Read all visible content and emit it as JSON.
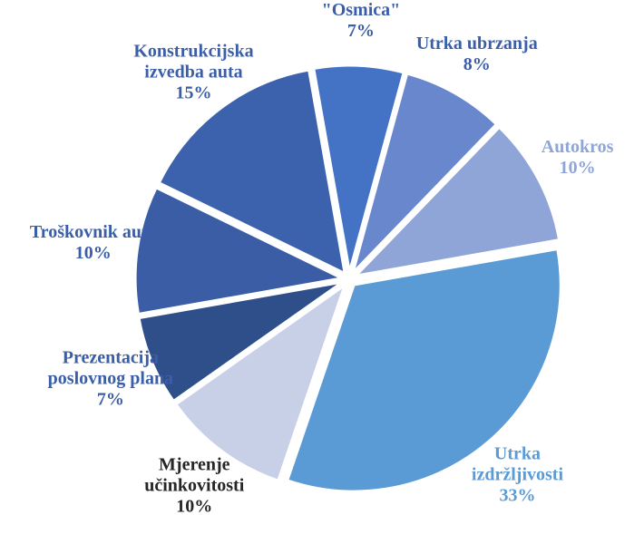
{
  "chart_data": {
    "type": "pie",
    "categories": [
      "\"Osmica\"",
      "Utrka ubrzanja",
      "Autokros",
      "Utrka izdržljivosti",
      "Mjerenje učinkovitosti",
      "Prezentacija poslovnog plana",
      "Troškovnik auta",
      "Konstrukcijska izvedba auta"
    ],
    "values": [
      7,
      8,
      10,
      33,
      10,
      7,
      10,
      15
    ],
    "value_labels": [
      "7%",
      "8%",
      "10%",
      "33%",
      "10%",
      "7%",
      "10%",
      "15%"
    ],
    "colors": [
      "#4472c4",
      "#6887cd",
      "#8fa5d7",
      "#5b9bd5",
      "#c8d0e8",
      "#2f4f8a",
      "#3a5da6",
      "#3d62ad"
    ],
    "label_colors": [
      "#3b5ea8",
      "#3b5ea8",
      "#8fa5d7",
      "#5b9bd5",
      "#262626",
      "#3b5ea8",
      "#3b5ea8",
      "#3b5ea8"
    ]
  }
}
